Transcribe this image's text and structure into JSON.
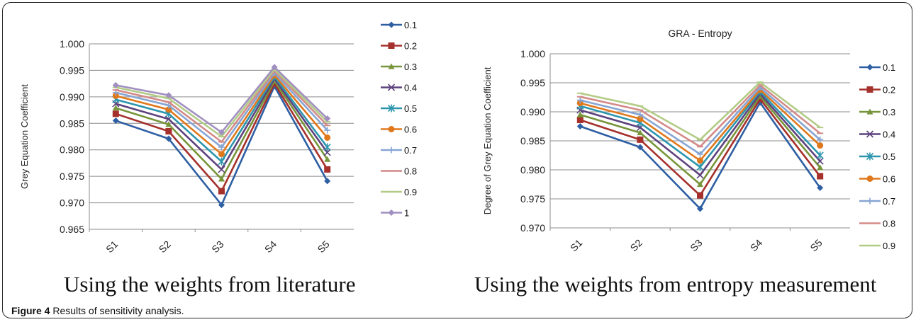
{
  "figure_caption": {
    "label": "Figure 4",
    "text": " Results of sensitivity analysis."
  },
  "panel_captions": [
    "Using the weights from literature",
    "Using the weights from entropy measurement"
  ],
  "chart_data": [
    {
      "type": "line",
      "title": "",
      "xlabel": "",
      "ylabel": "Grey Equation Coefficient",
      "categories": [
        "S1",
        "S2",
        "S3",
        "S4",
        "S5"
      ],
      "ylim": [
        0.965,
        1.0
      ],
      "yticks": [
        "0.965",
        "0.970",
        "0.975",
        "0.980",
        "0.985",
        "0.990",
        "0.995",
        "1.000"
      ],
      "grid": true,
      "legend": "right",
      "series": [
        {
          "name": "0.1",
          "color": "#2E5FA3",
          "marker": "diamond",
          "values": [
            0.9855,
            0.9821,
            0.9696,
            0.992,
            0.9741
          ]
        },
        {
          "name": "0.2",
          "color": "#A5302C",
          "marker": "square",
          "values": [
            0.9868,
            0.9835,
            0.9722,
            0.9925,
            0.9763
          ]
        },
        {
          "name": "0.3",
          "color": "#77953A",
          "marker": "triangle",
          "values": [
            0.9879,
            0.9848,
            0.9745,
            0.993,
            0.9782
          ]
        },
        {
          "name": "0.4",
          "color": "#5D427D",
          "marker": "x",
          "values": [
            0.9887,
            0.9858,
            0.9763,
            0.9934,
            0.9795
          ]
        },
        {
          "name": "0.5",
          "color": "#2D96AE",
          "marker": "star",
          "values": [
            0.9895,
            0.9868,
            0.9778,
            0.9938,
            0.9805
          ]
        },
        {
          "name": "0.6",
          "color": "#E0781C",
          "marker": "circle",
          "values": [
            0.9902,
            0.9876,
            0.9792,
            0.9941,
            0.9823
          ]
        },
        {
          "name": "0.7",
          "color": "#86A5D3",
          "marker": "plus",
          "values": [
            0.9908,
            0.9884,
            0.9805,
            0.9945,
            0.9837
          ]
        },
        {
          "name": "0.8",
          "color": "#D38A88",
          "marker": "dash",
          "values": [
            0.9913,
            0.989,
            0.9815,
            0.9949,
            0.9846
          ]
        },
        {
          "name": "0.9",
          "color": "#B2CC86",
          "marker": "dash",
          "values": [
            0.9918,
            0.9897,
            0.9825,
            0.9952,
            0.9853
          ]
        },
        {
          "name": "1",
          "color": "#A08FC0",
          "marker": "diamond",
          "values": [
            0.9922,
            0.9903,
            0.9833,
            0.9956,
            0.9859
          ]
        }
      ]
    },
    {
      "type": "line",
      "title": "GRA - Entropy",
      "xlabel": "",
      "ylabel": "Degree of Grey Equation Coefficient",
      "categories": [
        "S1",
        "S2",
        "S3",
        "S4",
        "S5"
      ],
      "ylim": [
        0.97,
        1.0
      ],
      "yticks": [
        "0.970",
        "0.975",
        "0.980",
        "0.985",
        "0.990",
        "0.995",
        "1.000"
      ],
      "grid": true,
      "legend": "right",
      "series": [
        {
          "name": "0.1",
          "color": "#2E5FA3",
          "marker": "diamond",
          "values": [
            0.9875,
            0.9839,
            0.9733,
            0.9916,
            0.9769
          ]
        },
        {
          "name": "0.2",
          "color": "#A5302C",
          "marker": "square",
          "values": [
            0.9886,
            0.9852,
            0.9756,
            0.9922,
            0.9789
          ]
        },
        {
          "name": "0.3",
          "color": "#77953A",
          "marker": "triangle",
          "values": [
            0.9895,
            0.9864,
            0.9775,
            0.9927,
            0.9804
          ]
        },
        {
          "name": "0.4",
          "color": "#5D427D",
          "marker": "x",
          "values": [
            0.9903,
            0.9873,
            0.9791,
            0.9931,
            0.9815
          ]
        },
        {
          "name": "0.5",
          "color": "#2D96AE",
          "marker": "star",
          "values": [
            0.991,
            0.9881,
            0.9805,
            0.9935,
            0.9825
          ]
        },
        {
          "name": "0.6",
          "color": "#E0781C",
          "marker": "circle",
          "values": [
            0.9915,
            0.9888,
            0.9816,
            0.9938,
            0.9842
          ]
        },
        {
          "name": "0.7",
          "color": "#86A5D3",
          "marker": "plus",
          "values": [
            0.992,
            0.9895,
            0.9827,
            0.9942,
            0.9852
          ]
        },
        {
          "name": "0.8",
          "color": "#D38A88",
          "marker": "dash",
          "values": [
            0.9926,
            0.9903,
            0.984,
            0.9946,
            0.9863
          ]
        },
        {
          "name": "0.9",
          "color": "#B2CC86",
          "marker": "dash",
          "values": [
            0.9932,
            0.991,
            0.9852,
            0.9951,
            0.9873
          ]
        }
      ]
    }
  ]
}
